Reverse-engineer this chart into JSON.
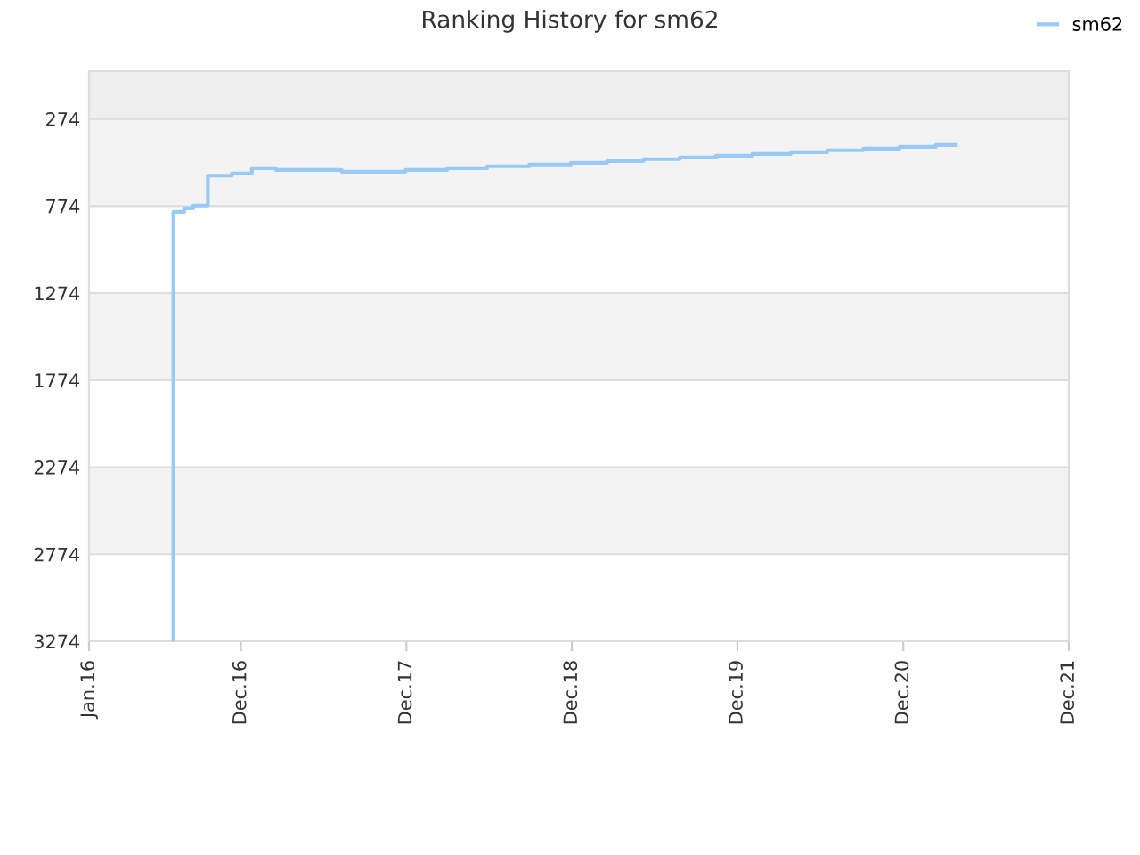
{
  "chart_data": {
    "type": "step",
    "title": "Ranking History for sm62",
    "x": [
      "2016-07-05",
      "2016-07-05",
      "2016-07-29",
      "2016-08-18",
      "2016-09-19",
      "2016-11-11",
      "2016-12-25",
      "2017-02-16",
      "2017-07-11",
      "2017-11-29",
      "2018-03-01",
      "2018-05-28",
      "2018-08-29",
      "2018-11-29",
      "2019-02-17",
      "2019-05-08",
      "2019-07-27",
      "2019-10-15",
      "2020-01-03",
      "2020-03-28",
      "2020-06-16",
      "2020-09-04",
      "2020-11-23",
      "2021-02-11",
      "2021-03-27"
    ],
    "series": [
      {
        "name": "sm62",
        "color": "#99c9f5",
        "values": [
          3274,
          808,
          787,
          771,
          600,
          587,
          557,
          567,
          577,
          567,
          557,
          546,
          536,
          526,
          516,
          505,
          495,
          485,
          475,
          465,
          454,
          444,
          434,
          424,
          424
        ]
      }
    ],
    "xlim": [
      "2016-01-01",
      "2021-12-01"
    ],
    "xticks": [
      {
        "value": "2016-01-01",
        "label": "Jan.16"
      },
      {
        "value": "2016-12-01",
        "label": "Dec.16"
      },
      {
        "value": "2017-12-01",
        "label": "Dec.17"
      },
      {
        "value": "2018-12-01",
        "label": "Dec.18"
      },
      {
        "value": "2019-12-01",
        "label": "Dec.19"
      },
      {
        "value": "2020-12-01",
        "label": "Dec.20"
      },
      {
        "value": "2021-12-01",
        "label": "Dec.21"
      }
    ],
    "ylim": [
      3274,
      0
    ],
    "yticks": [
      274,
      774,
      1274,
      1774,
      2274,
      2774,
      3274
    ],
    "bands": [
      {
        "axis": "y",
        "from": 0,
        "to": 274,
        "color": "#eeeeee"
      },
      {
        "axis": "y",
        "from": 274,
        "to": 774,
        "color": "#f3f3f3"
      },
      {
        "axis": "y",
        "from": 1274,
        "to": 1774,
        "color": "#f3f3f3"
      },
      {
        "axis": "y",
        "from": 2274,
        "to": 2774,
        "color": "#f3f3f3"
      }
    ],
    "grid": "y",
    "legend": "top right"
  }
}
